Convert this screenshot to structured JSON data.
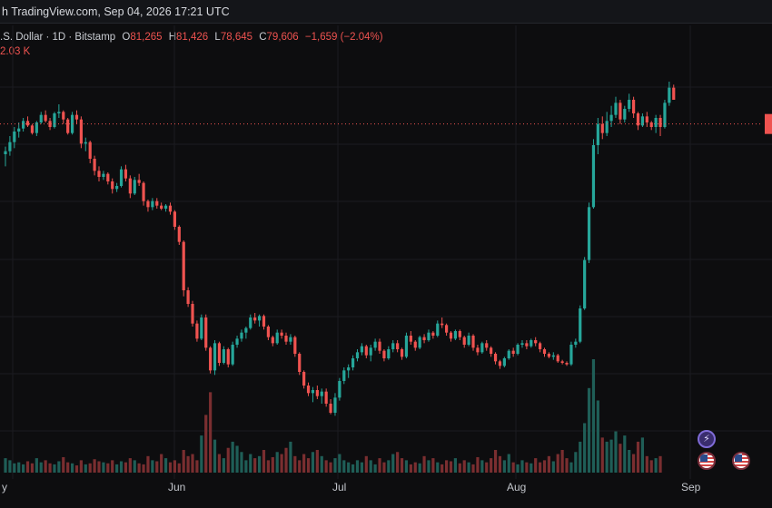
{
  "header": {
    "title": "h TradingView.com, Sep 04, 2026 17:21 UTC"
  },
  "legend": {
    "symbol": ".S. Dollar · 1D · Bitstamp",
    "open_label": "O",
    "open": "81,265",
    "high_label": "H",
    "high": "81,426",
    "low_label": "L",
    "low": "78,645",
    "close_label": "C",
    "close": "79,606",
    "change": "−1,659 (−2.04%)",
    "volume": "2.03 K"
  },
  "colors": {
    "up": "#26a69a",
    "down": "#ef5350",
    "background": "#0d0d0f",
    "grid": "#1b1c20",
    "price_line": "#ef5350"
  },
  "icons": [
    "lightning-icon",
    "us-flag-icon",
    "us-flag-icon"
  ],
  "chart_data": {
    "type": "candlestick",
    "title": "",
    "xlabel": "",
    "ylabel": "",
    "x_tick_labels": [
      "y",
      "Jun",
      "Jul",
      "Aug",
      "Sep"
    ],
    "grid": true,
    "candles": [
      [
        70.0,
        72.5,
        66.0,
        71.0
      ],
      [
        71.0,
        76.0,
        69.5,
        74.0
      ],
      [
        74.0,
        79.0,
        72.0,
        77.5
      ],
      [
        77.5,
        80.5,
        75.5,
        78.5
      ],
      [
        78.5,
        82.0,
        77.5,
        81.0
      ],
      [
        81.0,
        82.5,
        79.0,
        79.5
      ],
      [
        79.5,
        80.0,
        76.5,
        77.0
      ],
      [
        77.0,
        81.0,
        76.0,
        80.5
      ],
      [
        80.5,
        84.0,
        80.0,
        83.0
      ],
      [
        83.0,
        84.5,
        80.5,
        81.0
      ],
      [
        81.0,
        82.0,
        78.0,
        79.0
      ],
      [
        79.0,
        84.0,
        78.5,
        83.5
      ],
      [
        83.5,
        86.5,
        82.0,
        84.0
      ],
      [
        84.0,
        84.5,
        80.0,
        81.5
      ],
      [
        81.5,
        82.0,
        76.5,
        77.0
      ],
      [
        77.0,
        84.0,
        76.5,
        83.0
      ],
      [
        83.0,
        84.5,
        80.0,
        81.5
      ],
      [
        81.5,
        82.5,
        72.0,
        73.5
      ],
      [
        73.5,
        75.5,
        71.0,
        74.0
      ],
      [
        74.0,
        74.5,
        67.0,
        68.5
      ],
      [
        68.5,
        69.5,
        63.0,
        64.5
      ],
      [
        64.5,
        66.0,
        61.0,
        62.5
      ],
      [
        62.5,
        64.5,
        61.5,
        63.5
      ],
      [
        63.5,
        64.0,
        60.0,
        61.0
      ],
      [
        61.0,
        62.0,
        57.0,
        58.5
      ],
      [
        58.5,
        60.5,
        57.5,
        59.5
      ],
      [
        59.5,
        66.0,
        59.0,
        65.0
      ],
      [
        65.0,
        66.5,
        61.0,
        62.0
      ],
      [
        62.0,
        63.0,
        55.5,
        57.0
      ],
      [
        57.0,
        62.5,
        56.5,
        61.5
      ],
      [
        61.5,
        63.5,
        59.5,
        60.5
      ],
      [
        60.5,
        61.0,
        53.0,
        54.5
      ],
      [
        54.5,
        55.0,
        51.0,
        52.5
      ],
      [
        52.5,
        55.5,
        51.5,
        54.5
      ],
      [
        54.5,
        55.5,
        52.0,
        53.0
      ],
      [
        53.0,
        54.0,
        51.5,
        52.0
      ],
      [
        52.0,
        53.5,
        51.0,
        53.0
      ],
      [
        53.0,
        54.0,
        50.0,
        51.0
      ],
      [
        51.0,
        51.5,
        45.0,
        46.0
      ],
      [
        46.0,
        46.5,
        40.0,
        41.0
      ],
      [
        41.0,
        41.5,
        23.0,
        25.0
      ],
      [
        25.0,
        26.0,
        19.5,
        20.5
      ],
      [
        20.5,
        21.5,
        13.0,
        14.0
      ],
      [
        14.0,
        15.0,
        8.0,
        9.0
      ],
      [
        9.0,
        17.0,
        8.5,
        16.0
      ],
      [
        16.0,
        17.0,
        5.0,
        6.0
      ],
      [
        6.0,
        6.5,
        -2.5,
        -1.5
      ],
      [
        -1.5,
        8.5,
        -3.0,
        7.5
      ],
      [
        7.5,
        8.0,
        0.0,
        1.0
      ],
      [
        1.0,
        6.5,
        0.5,
        5.5
      ],
      [
        5.5,
        6.0,
        -0.5,
        0.5
      ],
      [
        0.5,
        8.0,
        0.0,
        7.0
      ],
      [
        7.0,
        10.0,
        6.0,
        9.0
      ],
      [
        9.0,
        12.0,
        8.0,
        11.0
      ],
      [
        11.0,
        13.0,
        9.0,
        12.5
      ],
      [
        12.5,
        17.0,
        12.0,
        16.0
      ],
      [
        16.0,
        17.5,
        14.0,
        15.0
      ],
      [
        15.0,
        17.0,
        13.0,
        16.5
      ],
      [
        16.5,
        17.0,
        12.0,
        13.0
      ],
      [
        13.0,
        13.5,
        8.5,
        9.5
      ],
      [
        9.5,
        10.0,
        6.5,
        7.5
      ],
      [
        7.5,
        12.0,
        7.0,
        11.0
      ],
      [
        11.0,
        12.0,
        9.0,
        10.0
      ],
      [
        10.0,
        11.0,
        7.0,
        8.0
      ],
      [
        8.0,
        10.5,
        7.0,
        9.5
      ],
      [
        9.5,
        10.0,
        3.0,
        4.0
      ],
      [
        4.0,
        4.5,
        -3.0,
        -2.0
      ],
      [
        -2.0,
        -1.5,
        -7.5,
        -6.5
      ],
      [
        -6.5,
        -5.5,
        -10.0,
        -9.0
      ],
      [
        -9.0,
        -7.0,
        -12.0,
        -8.0
      ],
      [
        -8.0,
        -6.5,
        -11.0,
        -10.0
      ],
      [
        -10.0,
        -7.5,
        -12.5,
        -8.5
      ],
      [
        -8.5,
        -7.5,
        -13.5,
        -12.5
      ],
      [
        -12.5,
        -11.0,
        -16.0,
        -15.5
      ],
      [
        -15.5,
        -9.0,
        -16.5,
        -10.5
      ],
      [
        -10.5,
        -4.0,
        -11.5,
        -5.0
      ],
      [
        -5.0,
        -0.5,
        -6.0,
        -1.5
      ],
      [
        -1.5,
        0.5,
        -4.0,
        -0.5
      ],
      [
        -0.5,
        3.5,
        -1.5,
        2.5
      ],
      [
        2.5,
        5.5,
        1.5,
        4.5
      ],
      [
        4.5,
        7.5,
        3.5,
        6.5
      ],
      [
        6.5,
        7.0,
        2.5,
        3.5
      ],
      [
        3.5,
        7.0,
        1.5,
        6.0
      ],
      [
        6.0,
        9.0,
        5.0,
        8.0
      ],
      [
        8.0,
        9.0,
        4.0,
        5.0
      ],
      [
        5.0,
        5.5,
        1.5,
        2.5
      ],
      [
        2.5,
        6.5,
        2.0,
        5.5
      ],
      [
        5.5,
        8.5,
        4.5,
        7.5
      ],
      [
        7.5,
        8.5,
        4.5,
        5.5
      ],
      [
        5.5,
        6.0,
        2.0,
        3.0
      ],
      [
        3.0,
        11.0,
        2.5,
        10.0
      ],
      [
        10.0,
        11.5,
        7.0,
        8.0
      ],
      [
        8.0,
        8.5,
        5.0,
        6.0
      ],
      [
        6.0,
        10.0,
        5.5,
        9.5
      ],
      [
        9.5,
        10.5,
        7.5,
        8.5
      ],
      [
        8.5,
        12.0,
        8.0,
        11.0
      ],
      [
        11.0,
        11.5,
        9.0,
        10.0
      ],
      [
        10.0,
        15.0,
        9.5,
        14.0
      ],
      [
        14.0,
        16.0,
        12.5,
        13.5
      ],
      [
        13.5,
        14.0,
        10.0,
        11.0
      ],
      [
        11.0,
        11.5,
        8.0,
        9.0
      ],
      [
        9.0,
        12.0,
        8.5,
        11.5
      ],
      [
        11.5,
        12.0,
        8.5,
        9.5
      ],
      [
        9.5,
        10.0,
        6.0,
        7.0
      ],
      [
        7.0,
        11.0,
        6.5,
        10.0
      ],
      [
        10.0,
        10.5,
        5.0,
        6.0
      ],
      [
        6.0,
        7.0,
        3.5,
        4.5
      ],
      [
        4.5,
        8.0,
        4.0,
        7.5
      ],
      [
        7.5,
        8.5,
        5.0,
        6.0
      ],
      [
        6.0,
        6.5,
        3.0,
        4.0
      ],
      [
        4.0,
        4.5,
        0.5,
        1.5
      ],
      [
        1.5,
        2.0,
        -1.0,
        0.0
      ],
      [
        0.0,
        3.0,
        -0.5,
        2.5
      ],
      [
        2.5,
        5.5,
        2.0,
        5.0
      ],
      [
        5.0,
        6.0,
        3.0,
        4.0
      ],
      [
        4.0,
        7.5,
        3.5,
        7.0
      ],
      [
        7.0,
        8.5,
        6.0,
        7.5
      ],
      [
        7.5,
        8.5,
        5.5,
        6.5
      ],
      [
        6.5,
        9.0,
        6.0,
        8.5
      ],
      [
        8.5,
        9.5,
        6.5,
        7.5
      ],
      [
        7.5,
        8.0,
        4.5,
        5.5
      ],
      [
        5.5,
        6.0,
        3.0,
        4.0
      ],
      [
        4.0,
        4.5,
        2.5,
        3.0
      ],
      [
        3.0,
        4.5,
        2.0,
        3.5
      ],
      [
        3.5,
        4.0,
        1.0,
        1.5
      ],
      [
        1.5,
        2.0,
        0.5,
        1.0
      ],
      [
        1.0,
        1.5,
        0.0,
        0.5
      ],
      [
        0.5,
        8.0,
        0.0,
        7.0
      ],
      [
        7.0,
        9.0,
        6.0,
        8.0
      ],
      [
        8.0,
        20.0,
        7.5,
        19.0
      ],
      [
        19.0,
        36.0,
        18.5,
        35.0
      ],
      [
        35.0,
        54.0,
        34.0,
        52.5
      ],
      [
        52.5,
        75.0,
        52.0,
        73.0
      ],
      [
        73.0,
        82.0,
        70.0,
        80.0
      ],
      [
        80.0,
        82.5,
        75.0,
        77.0
      ],
      [
        77.0,
        84.0,
        76.0,
        81.0
      ],
      [
        81.0,
        86.0,
        79.0,
        83.0
      ],
      [
        83.0,
        89.0,
        82.0,
        87.0
      ],
      [
        87.0,
        88.0,
        80.0,
        81.5
      ],
      [
        81.5,
        86.0,
        80.5,
        85.0
      ],
      [
        85.0,
        90.0,
        84.0,
        88.0
      ],
      [
        88.0,
        89.0,
        82.0,
        83.5
      ],
      [
        83.5,
        84.0,
        78.0,
        79.5
      ],
      [
        79.5,
        83.5,
        79.0,
        82.5
      ],
      [
        82.5,
        84.0,
        79.0,
        80.5
      ],
      [
        80.5,
        81.0,
        78.0,
        79.0
      ],
      [
        79.0,
        83.0,
        77.0,
        82.0
      ],
      [
        82.0,
        83.0,
        76.0,
        79.0
      ],
      [
        79.0,
        88.0,
        78.5,
        87.0
      ],
      [
        87.0,
        94.0,
        86.0,
        92.0
      ],
      [
        92.0,
        93.0,
        88.0,
        88.0
      ]
    ],
    "volumes": [
      14,
      12,
      9,
      10,
      8,
      11,
      9,
      14,
      10,
      12,
      9,
      8,
      11,
      15,
      10,
      9,
      7,
      12,
      8,
      9,
      13,
      11,
      10,
      9,
      12,
      8,
      11,
      10,
      14,
      12,
      9,
      8,
      16,
      12,
      11,
      18,
      14,
      10,
      12,
      9,
      22,
      16,
      18,
      12,
      36,
      56,
      78,
      32,
      18,
      14,
      24,
      30,
      26,
      20,
      12,
      18,
      14,
      16,
      22,
      12,
      15,
      20,
      18,
      24,
      30,
      16,
      12,
      18,
      14,
      20,
      22,
      16,
      12,
      10,
      14,
      18,
      12,
      10,
      8,
      12,
      10,
      16,
      12,
      8,
      14,
      10,
      12,
      18,
      20,
      14,
      12,
      8,
      10,
      9,
      16,
      12,
      14,
      10,
      8,
      12,
      11,
      14,
      9,
      12,
      10,
      8,
      15,
      12,
      10,
      14,
      22,
      16,
      12,
      18,
      10,
      8,
      12,
      10,
      9,
      14,
      10,
      12,
      16,
      11,
      18,
      22,
      14,
      10,
      20,
      30,
      48,
      82,
      110,
      70,
      34,
      30,
      32,
      40,
      28,
      36,
      22,
      18,
      30,
      34,
      16,
      12,
      14,
      16
    ],
    "price_range": [
      -20,
      100
    ],
    "current_price_level": 80.0
  }
}
